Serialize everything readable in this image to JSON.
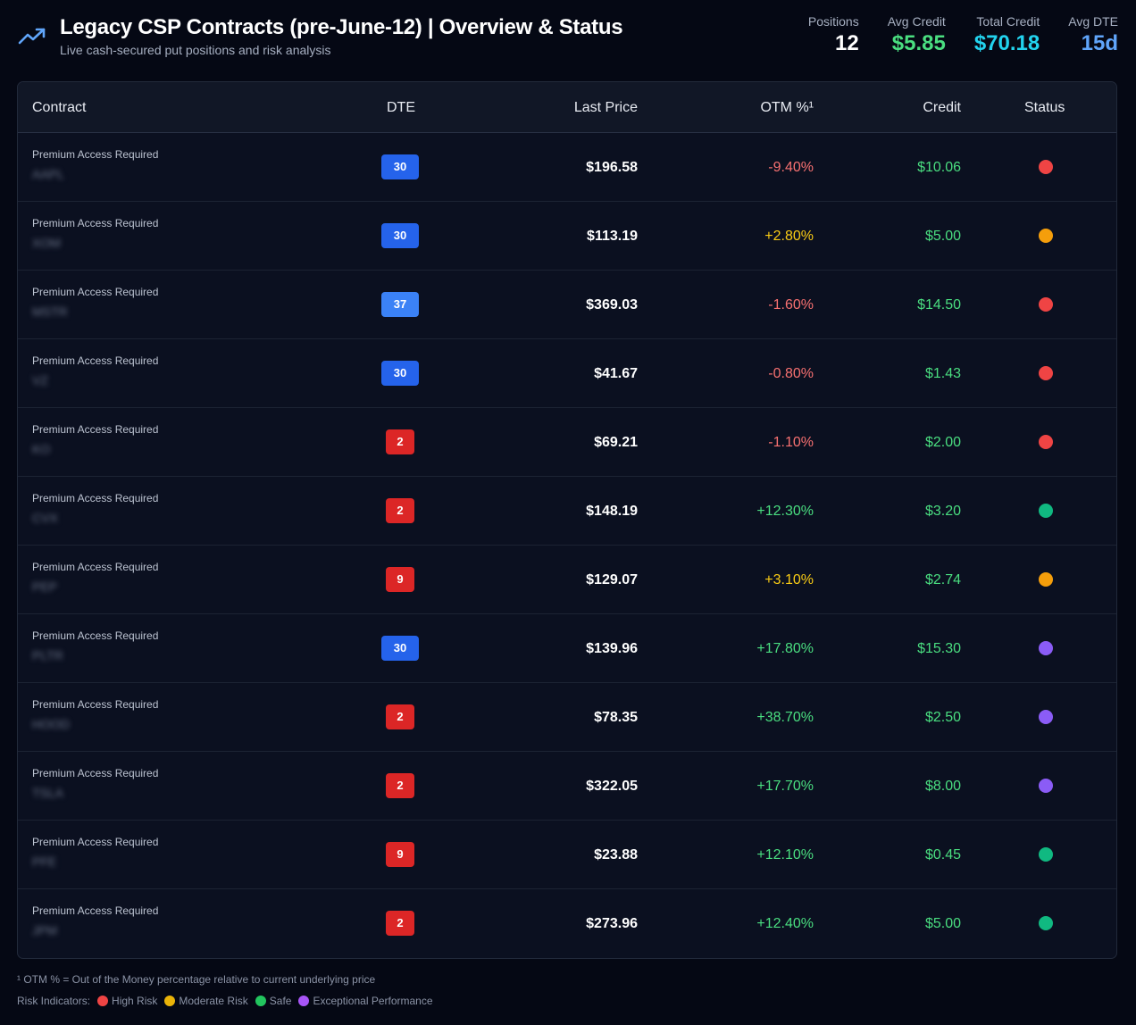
{
  "header": {
    "title": "Legacy CSP Contracts (pre-June-12) | Overview & Status",
    "subtitle": "Live cash-secured put positions and risk analysis",
    "icon": "trending-up-icon"
  },
  "stats": [
    {
      "label": "Positions",
      "value": "12",
      "color": "#ffffff"
    },
    {
      "label": "Avg Credit",
      "value": "$5.85",
      "color": "#4ade80"
    },
    {
      "label": "Total Credit",
      "value": "$70.18",
      "color": "#22d3ee"
    },
    {
      "label": "Avg DTE",
      "value": "15d",
      "color": "#60a5fa"
    }
  ],
  "table": {
    "headers": {
      "contract": "Contract",
      "dte": "DTE",
      "last_price": "Last Price",
      "otm": "OTM %¹",
      "credit": "Credit",
      "status": "Status"
    },
    "rows": [
      {
        "premium": "Premium Access Required",
        "ticker": "AAPL",
        "dte": "30",
        "dte_color": "blue",
        "price": "$196.58",
        "otm": "-9.40%",
        "otm_color": "#f87171",
        "credit": "$10.06",
        "status_color": "#ef4444"
      },
      {
        "premium": "Premium Access Required",
        "ticker": "XOM",
        "dte": "30",
        "dte_color": "blue",
        "price": "$113.19",
        "otm": "+2.80%",
        "otm_color": "#facc15",
        "credit": "$5.00",
        "status_color": "#f59e0b"
      },
      {
        "premium": "Premium Access Required",
        "ticker": "MSTR",
        "dte": "37",
        "dte_color": "blue2",
        "price": "$369.03",
        "otm": "-1.60%",
        "otm_color": "#f87171",
        "credit": "$14.50",
        "status_color": "#ef4444"
      },
      {
        "premium": "Premium Access Required",
        "ticker": "VZ",
        "dte": "30",
        "dte_color": "blue",
        "price": "$41.67",
        "otm": "-0.80%",
        "otm_color": "#f87171",
        "credit": "$1.43",
        "status_color": "#ef4444"
      },
      {
        "premium": "Premium Access Required",
        "ticker": "KO",
        "dte": "2",
        "dte_color": "red",
        "price": "$69.21",
        "otm": "-1.10%",
        "otm_color": "#f87171",
        "credit": "$2.00",
        "status_color": "#ef4444"
      },
      {
        "premium": "Premium Access Required",
        "ticker": "CVX",
        "dte": "2",
        "dte_color": "red",
        "price": "$148.19",
        "otm": "+12.30%",
        "otm_color": "#4ade80",
        "credit": "$3.20",
        "status_color": "#10b981"
      },
      {
        "premium": "Premium Access Required",
        "ticker": "PEP",
        "dte": "9",
        "dte_color": "red",
        "price": "$129.07",
        "otm": "+3.10%",
        "otm_color": "#facc15",
        "credit": "$2.74",
        "status_color": "#f59e0b"
      },
      {
        "premium": "Premium Access Required",
        "ticker": "PLTR",
        "dte": "30",
        "dte_color": "blue",
        "price": "$139.96",
        "otm": "+17.80%",
        "otm_color": "#4ade80",
        "credit": "$15.30",
        "status_color": "#8b5cf6"
      },
      {
        "premium": "Premium Access Required",
        "ticker": "HOOD",
        "dte": "2",
        "dte_color": "red",
        "price": "$78.35",
        "otm": "+38.70%",
        "otm_color": "#4ade80",
        "credit": "$2.50",
        "status_color": "#8b5cf6"
      },
      {
        "premium": "Premium Access Required",
        "ticker": "TSLA",
        "dte": "2",
        "dte_color": "red",
        "price": "$322.05",
        "otm": "+17.70%",
        "otm_color": "#4ade80",
        "credit": "$8.00",
        "status_color": "#8b5cf6"
      },
      {
        "premium": "Premium Access Required",
        "ticker": "PFE",
        "dte": "9",
        "dte_color": "red",
        "price": "$23.88",
        "otm": "+12.10%",
        "otm_color": "#4ade80",
        "credit": "$0.45",
        "status_color": "#10b981"
      },
      {
        "premium": "Premium Access Required",
        "ticker": "JPM",
        "dte": "2",
        "dte_color": "red",
        "price": "$273.96",
        "otm": "+12.40%",
        "otm_color": "#4ade80",
        "credit": "$5.00",
        "status_color": "#10b981"
      }
    ]
  },
  "footer": {
    "footnote": "¹ OTM % = Out of the Money percentage relative to current underlying price",
    "legend_label": "Risk Indicators:",
    "legend": [
      {
        "label": "High Risk",
        "color": "#ef4444"
      },
      {
        "label": "Moderate Risk",
        "color": "#eab308"
      },
      {
        "label": "Safe",
        "color": "#22c55e"
      },
      {
        "label": "Exceptional Performance",
        "color": "#a855f7"
      }
    ]
  }
}
